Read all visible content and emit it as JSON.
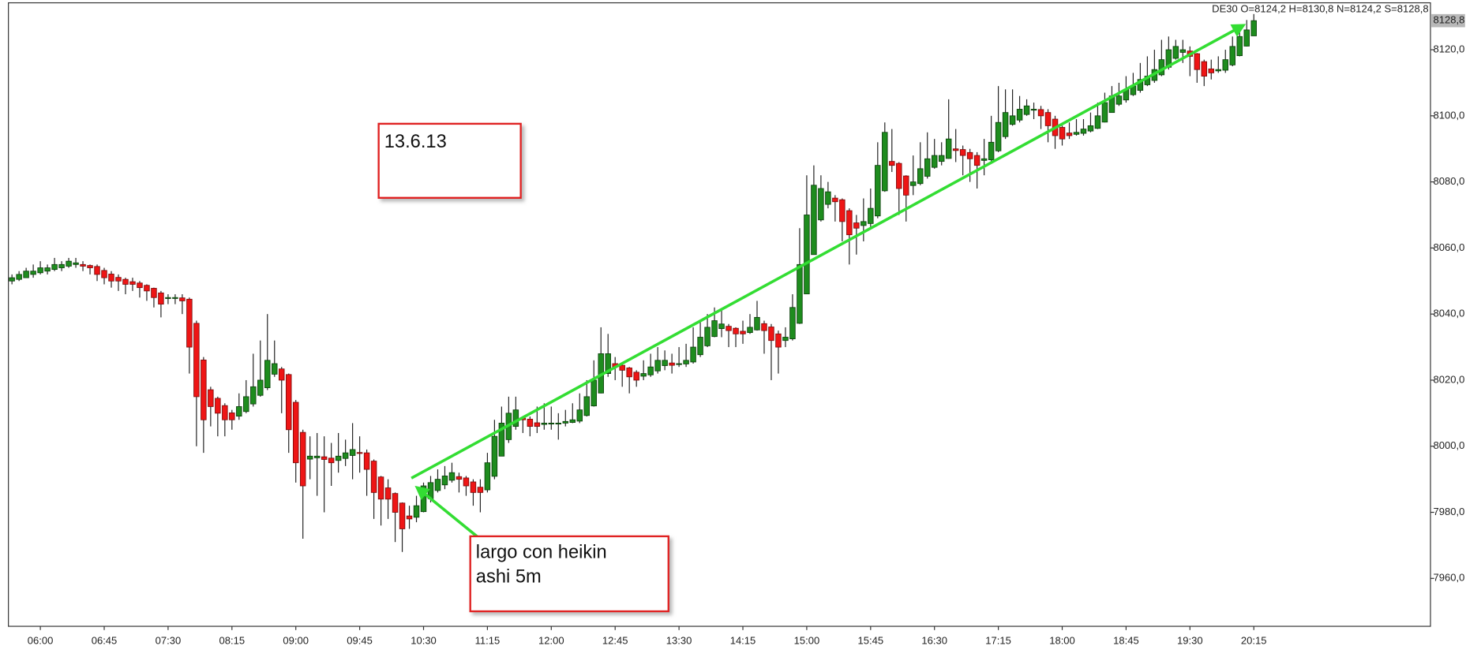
{
  "chart_data": {
    "type": "candlestick",
    "header": "DE30 O=8124,2 H=8130,8 N=8124,2 S=8128,8",
    "last_price_label": "8128,8",
    "up_color": "#1e8c1e",
    "down_color": "#ee1515",
    "ylim": [
      7945.5,
      8134.2
    ],
    "yticks": [
      {
        "value": 7960,
        "label": "7960,0"
      },
      {
        "value": 7980,
        "label": "7980,0"
      },
      {
        "value": 8000,
        "label": "8000,0"
      },
      {
        "value": 8020,
        "label": "8020,0"
      },
      {
        "value": 8040,
        "label": "8040,0"
      },
      {
        "value": 8060,
        "label": "8060,0"
      },
      {
        "value": 8080,
        "label": "8080,0"
      },
      {
        "value": 8100,
        "label": "8100,0"
      },
      {
        "value": 8120,
        "label": "8120,0"
      }
    ],
    "annotations": [
      {
        "lines": [
          "13.6.13"
        ]
      },
      {
        "lines": [
          "largo con heikin",
          "ashi 5m"
        ]
      }
    ],
    "categories": [
      null,
      null,
      null,
      null,
      "06:00",
      null,
      null,
      null,
      null,
      null,
      null,
      null,
      null,
      "06:45",
      null,
      null,
      null,
      null,
      null,
      null,
      null,
      null,
      "07:30",
      null,
      null,
      null,
      null,
      null,
      null,
      null,
      null,
      "08:15",
      null,
      null,
      null,
      null,
      null,
      null,
      null,
      null,
      "09:00",
      null,
      null,
      null,
      null,
      null,
      null,
      null,
      null,
      "09:45",
      null,
      null,
      null,
      null,
      null,
      null,
      null,
      null,
      "10:30",
      null,
      null,
      null,
      null,
      null,
      null,
      null,
      null,
      "11:15",
      null,
      null,
      null,
      null,
      null,
      null,
      null,
      null,
      "12:00",
      null,
      null,
      null,
      null,
      null,
      null,
      null,
      null,
      "12:45",
      null,
      null,
      null,
      null,
      null,
      null,
      null,
      null,
      "13:30",
      null,
      null,
      null,
      null,
      null,
      null,
      null,
      null,
      "14:15",
      null,
      null,
      null,
      null,
      null,
      null,
      null,
      null,
      "15:00",
      null,
      null,
      null,
      null,
      null,
      null,
      null,
      null,
      "15:45",
      null,
      null,
      null,
      null,
      null,
      null,
      null,
      null,
      "16:30",
      null,
      null,
      null,
      null,
      null,
      null,
      null,
      null,
      "17:15",
      null,
      null,
      null,
      null,
      null,
      null,
      null,
      null,
      "18:00",
      null,
      null,
      null,
      null,
      null,
      null,
      null,
      null,
      "18:45",
      null,
      null,
      null,
      null,
      null,
      null,
      null,
      null,
      "19:30",
      null,
      null,
      null,
      null,
      null,
      null,
      null,
      null,
      "20:15"
    ],
    "open": [
      8050,
      8050.5,
      8051,
      8052,
      8052.5,
      8053,
      8053.5,
      8054,
      8054.5,
      8055,
      8055,
      8054.7,
      8054.4,
      8053.2,
      8052.1,
      8051.1,
      8050.5,
      8049.8,
      8049.4,
      8048.7,
      8047.8,
      8046.4,
      8044.7,
      8044.8,
      8044.9,
      8044.5,
      8037.2,
      8026.1,
      8017.1,
      8014.5,
      8012.3,
      8010.1,
      8009.1,
      8010.5,
      8012.8,
      8015.4,
      8017.7,
      8021.8,
      8023.4,
      8021.7,
      8013.3,
      8004.2,
      7996.1,
      7996.5,
      7996.8,
      7996.4,
      7995.7,
      7996.3,
      7997.2,
      7998.1,
      7998,
      7995.5,
      7990.7,
      7987.4,
      7985.7,
      7982.8,
      7978.9,
      7978.5,
      7980.2,
      7984.1,
      7986.6,
      7988.3,
      7989.7,
      7990.8,
      7990.4,
      7989.2,
      7987.6,
      7986.8,
      7990.9,
      7997,
      8002,
      8006,
      8008.5,
      8008.2,
      8007.1,
      8006.6,
      8006.8,
      8006.9,
      8007,
      8007.2,
      8007.6,
      8009.3,
      8012.2,
      8016.1,
      8022,
      8025,
      8024.5,
      8023.7,
      8022.4,
      8021.2,
      8021.6,
      8022.8,
      8024.4,
      8025.2,
      8024.9,
      8024.9,
      8025.5,
      8027.7,
      8030.4,
      8033.2,
      8035.6,
      8036.3,
      8035.7,
      8034.8,
      8034.4,
      8035.2,
      8037.1,
      8036.1,
      8034,
      8032,
      8032.5,
      8037.2,
      8046.1,
      8058,
      8068.5,
      8073.2,
      8075.1,
      8074.6,
      8071.3,
      8067.6,
      8066.8,
      8067.4,
      8069.7,
      8077.3,
      8086.2,
      8085.6,
      8081.8,
      8078.9,
      8079.5,
      8081.7,
      8084.4,
      8086.2,
      8087.1,
      8090,
      8089.8,
      8088.9,
      8088,
      8086.5,
      8086.7,
      8089.4,
      8093.7,
      8097.4,
      8098.7,
      8100.4,
      8101.7,
      8101.9,
      8101,
      8099,
      8096.5,
      8094.8,
      8094.4,
      8094.7,
      8095.4,
      8096.2,
      8098.1,
      8101,
      8103.5,
      8104.8,
      8106.4,
      8107.7,
      8109.4,
      8110.7,
      8112.4,
      8114.7,
      8117.4,
      8119.2,
      8119.6,
      8118.8,
      8116.4,
      8114.2,
      8113.6,
      8113.8,
      8115.4,
      8118.2,
      8121.1,
      8124.2
    ],
    "high": [
      8052,
      8053,
      8054,
      8055,
      8056,
      8055,
      8057,
      8056,
      8057,
      8057,
      8056,
      8055,
      8055,
      8054,
      8053,
      8052,
      8051,
      8051,
      8050,
      8049,
      8048,
      8047,
      8046,
      8046,
      8046,
      8045,
      8038,
      8027,
      8018,
      8015,
      8013,
      8011,
      8016,
      8020,
      8028,
      8032,
      8040,
      8032,
      8024,
      8022,
      8014,
      8005,
      8003,
      8004,
      8003,
      8001,
      8004,
      8002,
      8007,
      8003,
      7999,
      7996,
      7991,
      7990,
      7986,
      7983,
      7982,
      7985,
      7989,
      7991,
      7993,
      7994,
      7995,
      7992,
      7991,
      7990,
      7990,
      7998,
      8008,
      8012,
      8015,
      8015,
      8009,
      8009,
      8012,
      8013,
      8012,
      8010,
      8011,
      8013,
      8016,
      8020,
      8026,
      8036,
      8034,
      8027,
      8025,
      8024,
      8023,
      8026,
      8028,
      8030,
      8029,
      8028,
      8030,
      8031,
      8036,
      8038,
      8040,
      8042,
      8041,
      8037,
      8036,
      8038,
      8040,
      8044,
      8038,
      8037,
      8035,
      8036,
      8046,
      8066,
      8082,
      8085,
      8082,
      8080,
      8076,
      8075,
      8072,
      8070,
      8075,
      8078,
      8092,
      8098,
      8096,
      8086,
      8082,
      8088,
      8092,
      8095,
      8093,
      8092,
      8105,
      8096,
      8091,
      8090,
      8089,
      8093,
      8100,
      8109,
      8108,
      8108,
      8106,
      8105,
      8104,
      8103,
      8102,
      8100,
      8097,
      8098,
      8099,
      8099,
      8101,
      8104,
      8107,
      8109,
      8110,
      8112,
      8113,
      8116,
      8118,
      8120,
      8123,
      8124,
      8123,
      8123,
      8121,
      8119,
      8117,
      8117,
      8118,
      8120,
      8124,
      8127,
      8129,
      8130.8
    ],
    "low": [
      8049,
      8050,
      8051,
      8051,
      8052,
      8052,
      8053,
      8053,
      8054,
      8054,
      8053,
      8052,
      8050,
      8049,
      8048,
      8047,
      8046,
      8047,
      8045,
      8044,
      8042,
      8039,
      8043,
      8043,
      8040,
      8022,
      8000,
      7998,
      8006,
      8003,
      8003,
      8005,
      8008,
      8010,
      8012,
      8015,
      8017,
      8021,
      8010,
      7998,
      7989,
      7972,
      7990,
      7985,
      7980,
      7988,
      7992,
      7994,
      7990,
      7992,
      7985,
      7978,
      7976,
      7978,
      7971,
      7968,
      7975,
      7977,
      7980,
      7983,
      7986,
      7987,
      7989,
      7986,
      7985,
      7982,
      7980,
      7986,
      7990,
      7997,
      8001,
      8005,
      8004,
      8003,
      8004,
      8005,
      8005,
      8002,
      8006,
      8007,
      8007,
      8009,
      8012,
      8016,
      8021,
      8020,
      8018,
      8016,
      8018,
      8020,
      8021,
      8022,
      8023,
      8022,
      8024,
      8024,
      8025,
      8027,
      8030,
      8033,
      8033,
      8030,
      8030,
      8031,
      8034,
      8035,
      8028,
      8020,
      8022,
      8030,
      8032,
      8037,
      8046,
      8058,
      8068,
      8072,
      8068,
      8062,
      8055,
      8058,
      8062,
      8066,
      8069,
      8077,
      8083,
      8070,
      8068,
      8076,
      8079,
      8081,
      8084,
      8085,
      8087,
      8086,
      8082,
      8080,
      8078,
      8082,
      8086,
      8089,
      8093,
      8097,
      8098,
      8100,
      8099,
      8096,
      8092,
      8090,
      8091,
      8093,
      8094,
      8094,
      8095,
      8096,
      8098,
      8101,
      8103,
      8104,
      8106,
      8107,
      8109,
      8110,
      8112,
      8114,
      8117,
      8116,
      8112,
      8110,
      8109,
      8111,
      8113,
      8113,
      8115,
      8118,
      8121,
      8124.2
    ],
    "close": [
      8051,
      8052,
      8053,
      8053,
      8054,
      8054,
      8055,
      8055,
      8056,
      8055.5,
      8054.5,
      8054,
      8052,
      8051,
      8050,
      8050,
      8049,
      8049,
      8048,
      8047,
      8045,
      8043,
      8045,
      8045,
      8044,
      8030,
      8015,
      8008,
      8012,
      8010,
      8008,
      8008,
      8012,
      8015,
      8018,
      8020,
      8026,
      8025,
      8020,
      8005,
      7995,
      7988,
      7997,
      7997,
      7996,
      7995,
      7997,
      7998,
      7999,
      7998,
      7993,
      7986,
      7984,
      7984,
      7980,
      7975,
      7978,
      7982,
      7988,
      7989,
      7990,
      7991,
      7992,
      7990,
      7988,
      7986,
      7986,
      7995,
      8003,
      8007,
      8010,
      8011,
      8008,
      8006,
      8006,
      8007,
      8007,
      8007,
      8007.5,
      8008,
      8011,
      8015,
      8020,
      8028,
      8028,
      8024,
      8023,
      8021,
      8020,
      8022,
      8024,
      8026,
      8026,
      8024.5,
      8025,
      8026,
      8030,
      8033,
      8036,
      8038,
      8037,
      8035,
      8034,
      8034,
      8036,
      8039,
      8035,
      8032,
      8030,
      8033,
      8042,
      8055,
      8070,
      8079,
      8078,
      8077,
      8074,
      8068,
      8064,
      8066,
      8068,
      8072,
      8085,
      8095,
      8085,
      8078,
      8076,
      8080,
      8084,
      8087,
      8088,
      8088,
      8093,
      8089.5,
      8088,
      8087,
      8085,
      8087,
      8092,
      8098,
      8101,
      8100,
      8102,
      8103,
      8102,
      8100,
      8097,
      8094,
      8093,
      8094,
      8095,
      8096,
      8097,
      8100,
      8104,
      8106,
      8106,
      8108,
      8109,
      8111,
      8112,
      8114,
      8117,
      8120,
      8121,
      8120,
      8118,
      8114,
      8112,
      8113,
      8114,
      8117,
      8121,
      8124,
      8126,
      8128.8
    ]
  }
}
